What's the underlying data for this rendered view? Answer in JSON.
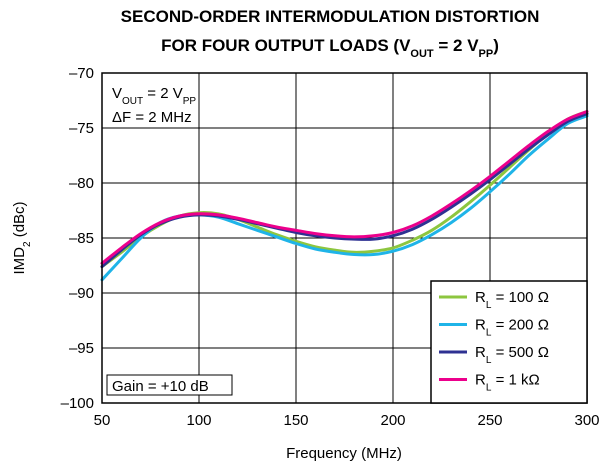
{
  "chart_data": {
    "type": "line",
    "title": {
      "line1": "SECOND-ORDER INTERMODULATION DISTORTION",
      "line2_prefix": "FOR FOUR OUTPUT LOADS (V",
      "line2_sub1": "OUT",
      "line2_mid": " = 2 V",
      "line2_sub2": "PP",
      "line2_suffix": ")"
    },
    "xlabel": "Frequency (MHz)",
    "ylabel": {
      "prefix": "IMD",
      "sub": "2",
      "suffix": " (dBc)"
    },
    "xlim": [
      50,
      300
    ],
    "ylim": [
      -100,
      -70
    ],
    "xticks": [
      50,
      100,
      150,
      200,
      250,
      300
    ],
    "xtick_labels": [
      "50",
      "100",
      "150",
      "200",
      "250",
      "300"
    ],
    "yticks": [
      -70,
      -75,
      -80,
      -85,
      -90,
      -95,
      -100
    ],
    "ytick_labels": [
      "–70",
      "–75",
      "–80",
      "–85",
      "–90",
      "–95",
      "–100"
    ],
    "grid": true,
    "annotations": {
      "vout": {
        "prefix": "V",
        "sub1": "OUT",
        "mid": " = 2 V",
        "sub2": "PP"
      },
      "delta_f": "ΔF = 2 MHz",
      "gain": "Gain = +10 dB"
    },
    "legend_position": "bottom-right",
    "series": [
      {
        "label_prefix": "R",
        "label_sub": "L",
        "label_suffix": " = 100 Ω",
        "color": "#8dc63f",
        "points": [
          [
            50,
            -87.6
          ],
          [
            60,
            -86.3
          ],
          [
            70,
            -84.9
          ],
          [
            80,
            -83.8
          ],
          [
            90,
            -83.0
          ],
          [
            100,
            -82.7
          ],
          [
            110,
            -82.8
          ],
          [
            120,
            -83.3
          ],
          [
            130,
            -84.0
          ],
          [
            140,
            -84.7
          ],
          [
            150,
            -85.3
          ],
          [
            160,
            -85.8
          ],
          [
            170,
            -86.1
          ],
          [
            180,
            -86.3
          ],
          [
            190,
            -86.2
          ],
          [
            200,
            -85.9
          ],
          [
            210,
            -85.2
          ],
          [
            220,
            -84.3
          ],
          [
            230,
            -83.1
          ],
          [
            240,
            -81.7
          ],
          [
            250,
            -80.2
          ],
          [
            260,
            -78.6
          ],
          [
            270,
            -77.0
          ],
          [
            280,
            -75.5
          ],
          [
            290,
            -74.2
          ],
          [
            300,
            -73.5
          ]
        ]
      },
      {
        "label_prefix": "R",
        "label_sub": "L",
        "label_suffix": " = 200 Ω",
        "color": "#1fb4e8",
        "points": [
          [
            50,
            -88.8
          ],
          [
            60,
            -86.9
          ],
          [
            70,
            -85.0
          ],
          [
            80,
            -83.6
          ],
          [
            90,
            -83.0
          ],
          [
            100,
            -82.9
          ],
          [
            110,
            -83.1
          ],
          [
            120,
            -83.7
          ],
          [
            130,
            -84.3
          ],
          [
            140,
            -84.9
          ],
          [
            150,
            -85.5
          ],
          [
            160,
            -86.0
          ],
          [
            170,
            -86.3
          ],
          [
            180,
            -86.5
          ],
          [
            190,
            -86.5
          ],
          [
            200,
            -86.2
          ],
          [
            210,
            -85.6
          ],
          [
            220,
            -84.7
          ],
          [
            230,
            -83.6
          ],
          [
            240,
            -82.3
          ],
          [
            250,
            -80.8
          ],
          [
            260,
            -79.2
          ],
          [
            270,
            -77.5
          ],
          [
            280,
            -76.0
          ],
          [
            290,
            -74.6
          ],
          [
            300,
            -73.9
          ]
        ]
      },
      {
        "label_prefix": "R",
        "label_sub": "L",
        "label_suffix": " = 500 Ω",
        "color": "#2e3192",
        "points": [
          [
            50,
            -87.6
          ],
          [
            60,
            -86.1
          ],
          [
            70,
            -84.7
          ],
          [
            80,
            -83.7
          ],
          [
            90,
            -83.1
          ],
          [
            100,
            -82.9
          ],
          [
            110,
            -83.0
          ],
          [
            120,
            -83.3
          ],
          [
            130,
            -83.7
          ],
          [
            140,
            -84.1
          ],
          [
            150,
            -84.5
          ],
          [
            160,
            -84.8
          ],
          [
            170,
            -85.0
          ],
          [
            180,
            -85.1
          ],
          [
            190,
            -85.1
          ],
          [
            200,
            -84.8
          ],
          [
            210,
            -84.2
          ],
          [
            220,
            -83.3
          ],
          [
            230,
            -82.2
          ],
          [
            240,
            -81.0
          ],
          [
            250,
            -79.7
          ],
          [
            260,
            -78.3
          ],
          [
            270,
            -76.9
          ],
          [
            280,
            -75.6
          ],
          [
            290,
            -74.4
          ],
          [
            300,
            -73.7
          ]
        ]
      },
      {
        "label_prefix": "R",
        "label_sub": "L",
        "label_suffix": " = 1 kΩ",
        "color": "#ec008c",
        "points": [
          [
            50,
            -87.3
          ],
          [
            60,
            -85.9
          ],
          [
            70,
            -84.6
          ],
          [
            80,
            -83.6
          ],
          [
            90,
            -83.0
          ],
          [
            100,
            -82.8
          ],
          [
            110,
            -82.9
          ],
          [
            120,
            -83.2
          ],
          [
            130,
            -83.6
          ],
          [
            140,
            -84.0
          ],
          [
            150,
            -84.3
          ],
          [
            160,
            -84.6
          ],
          [
            170,
            -84.8
          ],
          [
            180,
            -84.9
          ],
          [
            190,
            -84.8
          ],
          [
            200,
            -84.5
          ],
          [
            210,
            -83.9
          ],
          [
            220,
            -83.0
          ],
          [
            230,
            -81.9
          ],
          [
            240,
            -80.7
          ],
          [
            250,
            -79.4
          ],
          [
            260,
            -78.0
          ],
          [
            270,
            -76.6
          ],
          [
            280,
            -75.3
          ],
          [
            290,
            -74.2
          ],
          [
            300,
            -73.5
          ]
        ]
      }
    ]
  }
}
